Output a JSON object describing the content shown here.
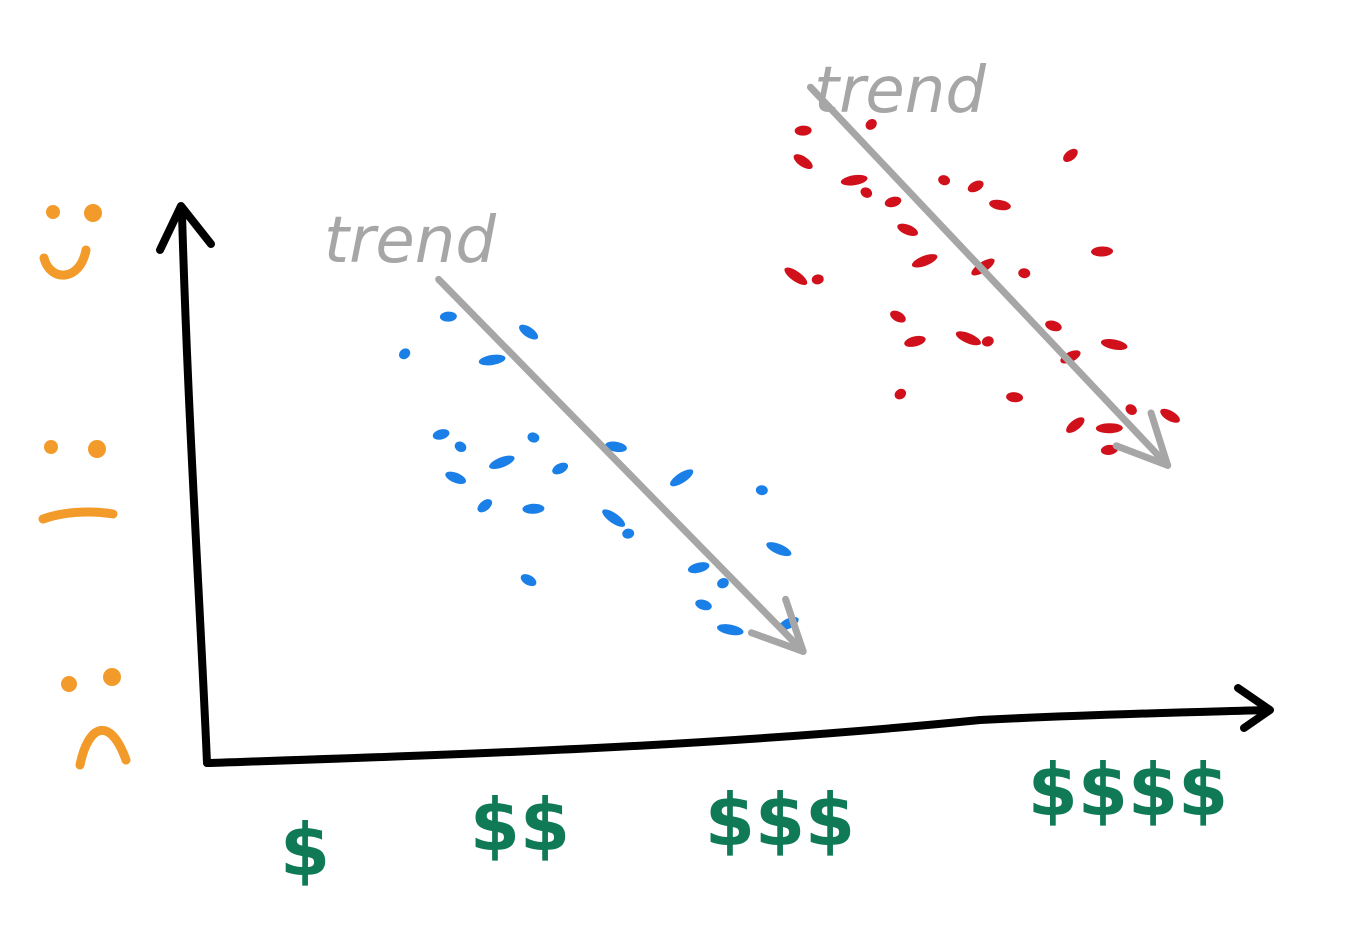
{
  "chart_data": {
    "type": "scatter",
    "title": "",
    "xlabel": "",
    "ylabel": "",
    "categories": [
      "$",
      "$$",
      "$$$",
      "$$$$"
    ],
    "y_levels": [
      "happy",
      "neutral",
      "sad"
    ],
    "xlim": [
      0.5,
      4.6
    ],
    "ylim": [
      0,
      10
    ],
    "grid": false,
    "colors": {
      "axis": "#000000",
      "face": "#f39b2a",
      "tick": "#0f7a55",
      "trend": "#a6a6a6",
      "series_blue": "#1a7fe6",
      "series_red": "#d0111b"
    },
    "annotations": [
      {
        "text": "trend",
        "series": "blue"
      },
      {
        "text": "trend",
        "series": "red"
      }
    ],
    "series": [
      {
        "color_key": "series_blue",
        "trend": {
          "from": [
            1.55,
            7.8
          ],
          "to": [
            3.05,
            1.8
          ]
        },
        "points": [
          [
            1.41,
            6.6
          ],
          [
            1.59,
            7.2
          ],
          [
            1.92,
            6.95
          ],
          [
            1.77,
            6.5
          ],
          [
            1.64,
            5.1
          ],
          [
            1.56,
            5.3
          ],
          [
            1.62,
            4.6
          ],
          [
            1.81,
            4.85
          ],
          [
            1.94,
            5.25
          ],
          [
            2.05,
            4.75
          ],
          [
            2.28,
            5.1
          ],
          [
            2.55,
            4.6
          ],
          [
            2.88,
            4.4
          ],
          [
            1.74,
            4.15
          ],
          [
            1.94,
            4.1
          ],
          [
            2.27,
            3.95
          ],
          [
            2.33,
            3.7
          ],
          [
            1.92,
            2.95
          ],
          [
            2.62,
            3.15
          ],
          [
            2.95,
            3.45
          ],
          [
            2.72,
            2.9
          ],
          [
            2.64,
            2.55
          ],
          [
            2.99,
            2.25
          ],
          [
            2.75,
            2.15
          ]
        ]
      },
      {
        "color_key": "series_red",
        "trend": {
          "from": [
            3.08,
            10.9
          ],
          "to": [
            4.55,
            4.8
          ]
        },
        "points": [
          [
            3.33,
            10.3
          ],
          [
            3.05,
            10.2
          ],
          [
            3.05,
            9.7
          ],
          [
            3.26,
            9.4
          ],
          [
            3.31,
            9.2
          ],
          [
            3.42,
            9.05
          ],
          [
            3.48,
            8.6
          ],
          [
            3.55,
            8.1
          ],
          [
            3.63,
            9.4
          ],
          [
            3.76,
            9.3
          ],
          [
            3.86,
            9.0
          ],
          [
            3.79,
            8.0
          ],
          [
            3.96,
            7.9
          ],
          [
            4.15,
            9.8
          ],
          [
            4.28,
            8.25
          ],
          [
            3.02,
            7.85
          ],
          [
            3.11,
            7.8
          ],
          [
            3.44,
            7.2
          ],
          [
            3.51,
            6.8
          ],
          [
            3.73,
            6.85
          ],
          [
            3.81,
            6.8
          ],
          [
            4.08,
            7.05
          ],
          [
            4.15,
            6.55
          ],
          [
            4.33,
            6.75
          ],
          [
            3.45,
            5.95
          ],
          [
            3.92,
            5.9
          ],
          [
            4.17,
            5.45
          ],
          [
            4.31,
            5.4
          ],
          [
            4.4,
            5.7
          ],
          [
            4.31,
            5.05
          ],
          [
            4.56,
            5.6
          ]
        ]
      }
    ]
  }
}
